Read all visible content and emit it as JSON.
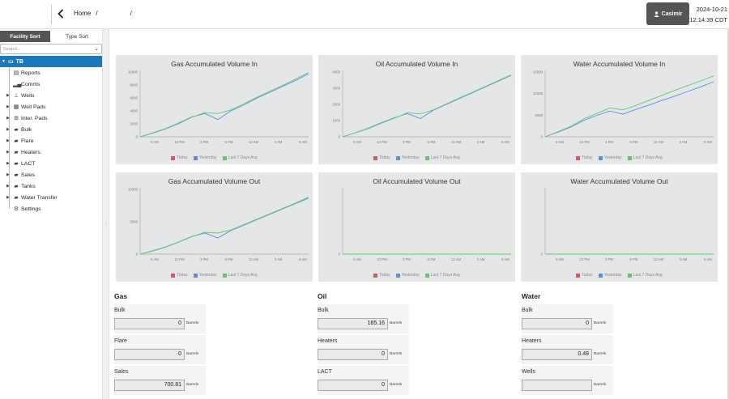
{
  "header": {
    "breadcrumb_home": "Home",
    "breadcrumb_sep": "/",
    "user_name": "Casimir",
    "date": "2024-10-21",
    "time": "12:14:39 CDT"
  },
  "sidebar": {
    "tab_facility": "Facility Sort",
    "tab_type": "Type Sort",
    "search_placeholder": "Search...",
    "root_label": "TB",
    "items": [
      {
        "label": "Reports",
        "icon": "reports-icon",
        "glyph": "▤",
        "has_arrow": false
      },
      {
        "label": "Comms",
        "icon": "signal-bars-icon",
        "glyph": "▂▄",
        "has_arrow": false
      },
      {
        "label": "Wells",
        "icon": "well-icon",
        "glyph": "⊥",
        "has_arrow": true
      },
      {
        "label": "Well Pads",
        "icon": "well-pads-icon",
        "glyph": "▦",
        "has_arrow": true
      },
      {
        "label": "Inter. Pads",
        "icon": "inter-pads-icon",
        "glyph": "⊞",
        "has_arrow": true
      },
      {
        "label": "Bulk",
        "icon": "folder-icon",
        "glyph": "▰",
        "has_arrow": true
      },
      {
        "label": "Flare",
        "icon": "folder-icon",
        "glyph": "▰",
        "has_arrow": true
      },
      {
        "label": "Heaters",
        "icon": "folder-icon",
        "glyph": "▰",
        "has_arrow": true
      },
      {
        "label": "LACT",
        "icon": "folder-icon",
        "glyph": "▰",
        "has_arrow": true
      },
      {
        "label": "Sales",
        "icon": "folder-icon",
        "glyph": "▰",
        "has_arrow": true
      },
      {
        "label": "Tanks",
        "icon": "folder-icon",
        "glyph": "▰",
        "has_arrow": true
      },
      {
        "label": "Water Transfer",
        "icon": "folder-icon",
        "glyph": "▰",
        "has_arrow": true
      },
      {
        "label": "Settings",
        "icon": "gear-icon",
        "glyph": "⚙",
        "has_arrow": false
      }
    ]
  },
  "colors": {
    "today": "#e05555",
    "yesterday": "#5b8fd6",
    "last7": "#6cc26c",
    "accent": "#1c78b9"
  },
  "legend": {
    "today": "Today",
    "yesterday": "Yesterday",
    "last7": "Last 7 Days Avg"
  },
  "chart_data": [
    {
      "type": "line",
      "title": "Gas Accumulated Volume In",
      "yticks": [
        "10000",
        "8000",
        "6000",
        "4000",
        "2000",
        "0"
      ],
      "xticks": [
        "6 AM",
        "12 PM",
        "3 PM",
        "6 PM",
        "12 AM",
        "3 AM",
        "6 AM"
      ],
      "series": [
        {
          "name": "Yesterday",
          "values": [
            0,
            600,
            1250,
            2100,
            3000,
            3500,
            2600,
            3900,
            4800,
            5800,
            6700,
            7600,
            8500,
            9500
          ]
        },
        {
          "name": "Last 7 Days Avg",
          "values": [
            0,
            550,
            1200,
            2000,
            2950,
            3650,
            3500,
            4050,
            4950,
            5950,
            6850,
            7750,
            8700,
            9700
          ]
        }
      ],
      "ylim": [
        0,
        10000
      ]
    },
    {
      "type": "line",
      "title": "Oil Accumulated Volume In",
      "yticks": [
        "4000",
        "3000",
        "2000",
        "1000",
        "0"
      ],
      "xticks": [
        "6 AM",
        "12 PM",
        "3 PM",
        "6 PM",
        "12 AM",
        "3 AM",
        "6 AM"
      ],
      "series": [
        {
          "name": "Yesterday",
          "values": [
            0,
            250,
            520,
            850,
            1150,
            1400,
            1100,
            1600,
            1950,
            2300,
            2650,
            3000,
            3350,
            3700
          ]
        },
        {
          "name": "Last 7 Days Avg",
          "values": [
            0,
            240,
            500,
            820,
            1120,
            1450,
            1380,
            1620,
            1980,
            2330,
            2680,
            3030,
            3380,
            3730
          ]
        }
      ],
      "ylim": [
        0,
        4000
      ]
    },
    {
      "type": "line",
      "title": "Water Accumulated Volume In",
      "yticks": [
        "15000",
        "10000",
        "5000",
        "0"
      ],
      "xticks": [
        "6 AM",
        "12 PM",
        "3 PM",
        "6 PM",
        "12 AM",
        "3 AM",
        "6 AM"
      ],
      "series": [
        {
          "name": "Yesterday",
          "values": [
            0,
            1200,
            2500,
            4200,
            5500,
            6600,
            5800,
            7000,
            8100,
            9300,
            10400,
            11600,
            12800,
            14100
          ]
        },
        {
          "name": "Last 7 Days Avg",
          "values": [
            0,
            1300,
            2700,
            4600,
            6000,
            7400,
            6900,
            8000,
            9300,
            10600,
            11900,
            13100,
            14300,
            15600
          ]
        }
      ],
      "ylim": [
        0,
        17000
      ]
    },
    {
      "type": "line",
      "title": "Gas Accumulated Volume Out",
      "yticks": [
        "10000",
        "5000",
        "0"
      ],
      "xticks": [
        "6 AM",
        "12 PM",
        "3 PM",
        "6 PM",
        "12 AM",
        "3 AM",
        "6 AM"
      ],
      "series": [
        {
          "name": "Yesterday",
          "values": [
            0,
            700,
            1500,
            2500,
            3600,
            4300,
            3300,
            4800,
            5900,
            7000,
            8100,
            9200,
            10300,
            11400
          ]
        },
        {
          "name": "Last 7 Days Avg",
          "values": [
            0,
            650,
            1450,
            2450,
            3550,
            4450,
            4300,
            4900,
            6000,
            7100,
            8200,
            9300,
            10400,
            11600
          ]
        }
      ],
      "ylim": [
        0,
        13500
      ]
    },
    {
      "type": "line",
      "title": "Oil Accumulated Volume Out",
      "yticks": [
        "0"
      ],
      "xticks": [
        "6 AM",
        "12 PM",
        "3 PM",
        "6 PM",
        "12 AM",
        "3 AM",
        "6 AM"
      ],
      "series": [
        {
          "name": "Yesterday",
          "values": [
            0,
            0
          ]
        },
        {
          "name": "Last 7 Days Avg",
          "values": [
            0,
            0
          ]
        }
      ],
      "ylim": [
        0,
        1
      ]
    },
    {
      "type": "line",
      "title": "Water Accumulated Volume Out",
      "yticks": [
        "0"
      ],
      "xticks": [
        "6 AM",
        "12 PM",
        "3 PM",
        "6 PM",
        "12 AM",
        "3 AM",
        "6 AM"
      ],
      "series": [
        {
          "name": "Yesterday",
          "values": [
            0,
            0
          ]
        },
        {
          "name": "Last 7 Days Avg",
          "values": [
            0,
            0
          ]
        }
      ],
      "ylim": [
        0,
        1
      ]
    }
  ],
  "metrics": {
    "unit": "Barrels",
    "gas": {
      "heading": "Gas",
      "rows": [
        {
          "label": "Bulk",
          "value": "0"
        },
        {
          "label": "Flare",
          "value": "0"
        },
        {
          "label": "Sales",
          "value": "700.81"
        }
      ]
    },
    "oil": {
      "heading": "Oil",
      "rows": [
        {
          "label": "Bulk",
          "value": "165.16"
        },
        {
          "label": "Heaters",
          "value": "0"
        },
        {
          "label": "LACT",
          "value": "0"
        }
      ]
    },
    "water": {
      "heading": "Water",
      "rows": [
        {
          "label": "Bulk",
          "value": "0"
        },
        {
          "label": "Heaters",
          "value": "0.48"
        },
        {
          "label": "Wells",
          "value": ""
        }
      ]
    }
  }
}
